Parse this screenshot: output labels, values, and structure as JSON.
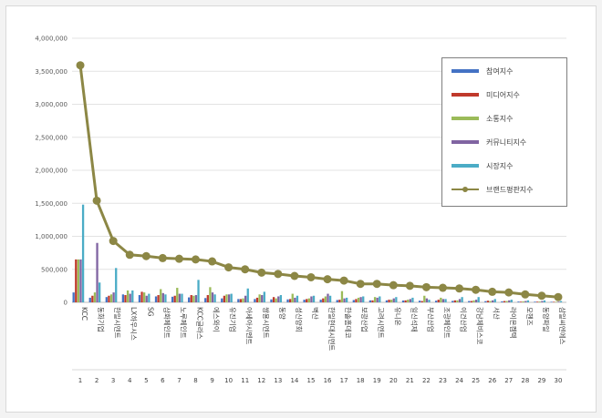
{
  "chart_data": {
    "type": "bar",
    "ylim": [
      0,
      4000000
    ],
    "yticks": [
      "0",
      "500,000",
      "1,000,000",
      "1,500,000",
      "2,000,000",
      "2,500,000",
      "3,000,000",
      "3,500,000",
      "4,000,000"
    ],
    "ytick_values": [
      0,
      500000,
      1000000,
      1500000,
      2000000,
      2500000,
      3000000,
      3500000,
      4000000
    ],
    "grid": true,
    "legend_position": "top-right",
    "categories": [
      "KCC",
      "동화기업",
      "한일시멘트",
      "LX하우시스",
      "SG",
      "삼화페인트",
      "노루페인트",
      "KCC글라스",
      "에스와이",
      "유진기업",
      "아세아시멘트",
      "쌍용시멘트",
      "동양",
      "성신양회",
      "벽산",
      "한일현대시멘트",
      "한솔홈데코",
      "보광산업",
      "고려시멘트",
      "유니온",
      "일신석재",
      "부산산업",
      "조광페인트",
      "이건산업",
      "강남제비스코",
      "서산",
      "라이온켐텍",
      "모헨즈",
      "동양파일",
      "삼일씨엔에스"
    ],
    "ranks": [
      "1",
      "2",
      "3",
      "4",
      "5",
      "6",
      "7",
      "8",
      "9",
      "10",
      "11",
      "12",
      "13",
      "14",
      "15",
      "16",
      "17",
      "18",
      "19",
      "20",
      "21",
      "22",
      "23",
      "24",
      "25",
      "26",
      "27",
      "28",
      "29",
      "30"
    ],
    "series": [
      {
        "name": "참여지수",
        "color": "#4472c4",
        "values": [
          150000,
          70000,
          80000,
          120000,
          110000,
          90000,
          85000,
          75000,
          65000,
          60000,
          50000,
          50000,
          45000,
          45000,
          40000,
          40000,
          35000,
          35000,
          30000,
          30000,
          28000,
          25000,
          25000,
          22000,
          20000,
          18000,
          15000,
          12000,
          10000,
          8000
        ]
      },
      {
        "name": "미디어지수",
        "color": "#c0392b",
        "values": [
          650000,
          100000,
          100000,
          110000,
          160000,
          110000,
          100000,
          110000,
          110000,
          100000,
          50000,
          70000,
          80000,
          50000,
          50000,
          60000,
          40000,
          50000,
          30000,
          40000,
          30000,
          20000,
          40000,
          30000,
          20000,
          25000,
          20000,
          10000,
          10000,
          8000
        ]
      },
      {
        "name": "소통지수",
        "color": "#9bbb59",
        "values": [
          650000,
          150000,
          120000,
          180000,
          150000,
          200000,
          220000,
          100000,
          230000,
          120000,
          60000,
          120000,
          60000,
          130000,
          60000,
          90000,
          170000,
          70000,
          80000,
          40000,
          40000,
          100000,
          70000,
          30000,
          30000,
          20000,
          20000,
          15000,
          12000,
          8000
        ]
      },
      {
        "name": "커뮤니티지수",
        "color": "#8064a2",
        "values": [
          650000,
          900000,
          150000,
          130000,
          100000,
          140000,
          130000,
          110000,
          150000,
          120000,
          100000,
          110000,
          90000,
          70000,
          90000,
          130000,
          60000,
          80000,
          70000,
          60000,
          50000,
          60000,
          50000,
          50000,
          40000,
          30000,
          30000,
          20000,
          20000,
          10000
        ]
      },
      {
        "name": "시장지수",
        "color": "#4bacc6",
        "values": [
          1480000,
          300000,
          520000,
          180000,
          130000,
          120000,
          130000,
          340000,
          120000,
          130000,
          210000,
          160000,
          110000,
          100000,
          100000,
          100000,
          70000,
          90000,
          90000,
          80000,
          70000,
          40000,
          50000,
          80000,
          80000,
          50000,
          40000,
          30000,
          30000,
          20000
        ]
      }
    ],
    "line": {
      "name": "브랜드평판지수",
      "color": "#8c8745",
      "values": [
        3590000,
        1540000,
        930000,
        720000,
        700000,
        670000,
        660000,
        650000,
        620000,
        530000,
        500000,
        450000,
        430000,
        400000,
        380000,
        350000,
        330000,
        280000,
        280000,
        260000,
        250000,
        230000,
        220000,
        210000,
        190000,
        160000,
        150000,
        120000,
        100000,
        80000
      ]
    }
  }
}
